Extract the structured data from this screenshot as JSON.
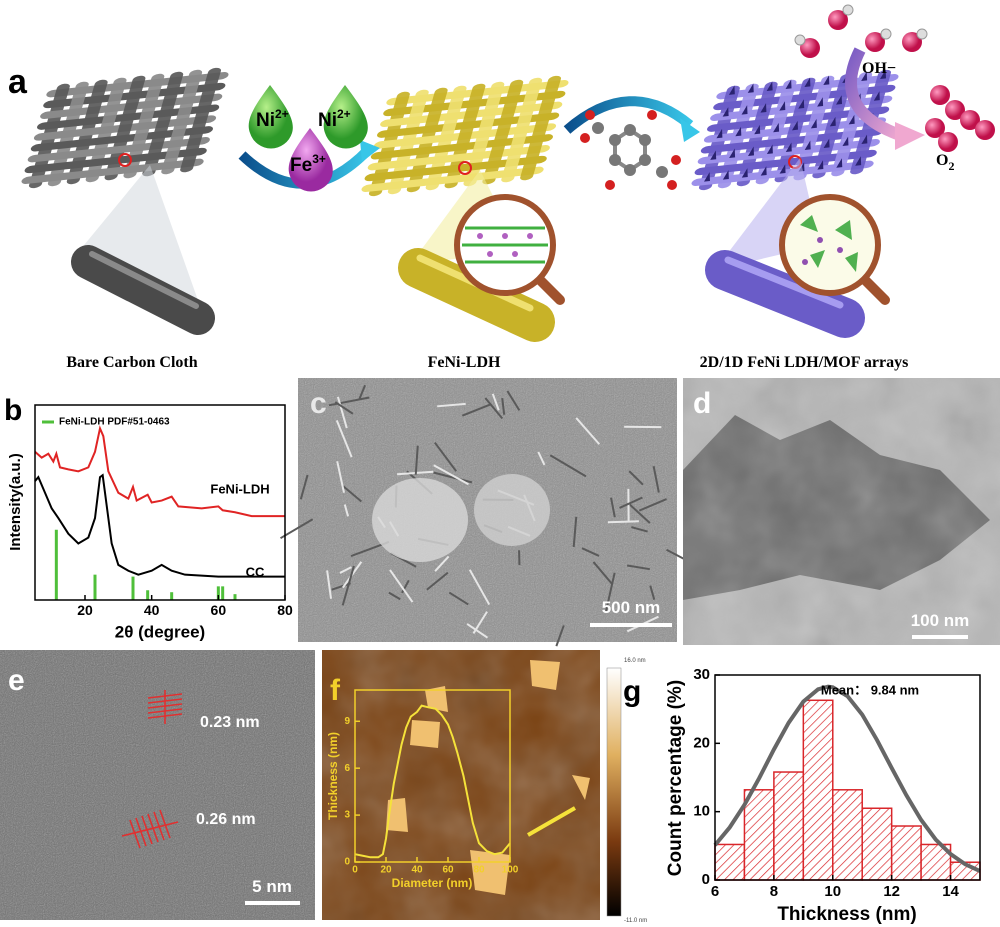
{
  "panel_a": {
    "label": "a",
    "ions": [
      {
        "base": "Ni",
        "sup": "2+"
      },
      {
        "base": "Ni",
        "sup": "2+"
      },
      {
        "base": "Fe",
        "sup": "3+"
      }
    ],
    "hydroxide": "OH−",
    "oxygen": {
      "base": "O",
      "sub": "2"
    },
    "captions": [
      "Bare Carbon Cloth",
      "FeNi-LDH",
      "2D/1D FeNi LDH/MOF arrays"
    ]
  },
  "images": {
    "c": {
      "label": "c",
      "scale_bar": "500 nm"
    },
    "d": {
      "label": "d",
      "scale_bar": "100 nm"
    },
    "e": {
      "label": "e",
      "scale_bar": "5 nm",
      "spacings": [
        "0.23 nm",
        "0.26 nm"
      ]
    },
    "f": {
      "label": "f",
      "colorbar": [
        "16.0 nm",
        "-11.0 nm"
      ]
    }
  },
  "chart_data": [
    {
      "type": "line",
      "label": "b",
      "x_label": "2θ (degree)",
      "y_label": "Intensity(a.u.)",
      "xlim": [
        5,
        80
      ],
      "xticks": [
        20,
        40,
        60,
        80
      ],
      "ylim": [
        0,
        100
      ],
      "legend": "upper right",
      "series": [
        {
          "name": "FeNi-LDH",
          "color": "#e02424",
          "x": [
            5,
            7,
            9,
            10.5,
            11.4,
            12.5,
            15,
            18,
            21,
            23,
            24.5,
            25.5,
            27,
            30,
            33,
            34.4,
            35.5,
            38.8,
            40,
            43,
            46,
            48,
            55,
            60,
            61.3,
            65,
            70,
            80
          ],
          "values": [
            76,
            73,
            75,
            71,
            75,
            68,
            67,
            66,
            68,
            76,
            88,
            84,
            66,
            55,
            52,
            58,
            51,
            54,
            50,
            51,
            53,
            48,
            47,
            48,
            46,
            45,
            43,
            43
          ]
        },
        {
          "name": "CC",
          "color": "#000000",
          "x": [
            5,
            6,
            8,
            10,
            12,
            15,
            18,
            21,
            23,
            24.5,
            25.3,
            26,
            28,
            30,
            33,
            36,
            40,
            43,
            46,
            50,
            60,
            70,
            80
          ],
          "values": [
            61,
            63,
            55,
            47,
            42,
            34,
            29,
            32,
            42,
            63,
            64,
            55,
            29,
            18,
            15,
            13,
            15,
            18,
            15,
            13,
            12,
            12,
            12
          ]
        },
        {
          "name": "FeNi-LDH PDF#51-0463",
          "color": "#4fbf3a",
          "style": "stick",
          "x": [
            11.4,
            23,
            34.4,
            38.8,
            46,
            60,
            61.3,
            65
          ],
          "values": [
            36,
            13,
            12,
            5,
            4,
            7,
            7,
            3
          ]
        }
      ]
    },
    {
      "type": "line",
      "x_label": "Diameter (nm)",
      "y_label": "Thickness (nm)",
      "xlim": [
        0,
        100
      ],
      "xticks": [
        0,
        20,
        40,
        60,
        80,
        100
      ],
      "ylim": [
        0,
        11
      ],
      "yticks": [
        0,
        3,
        6,
        9
      ],
      "series": [
        {
          "color": "#f5e23a",
          "x": [
            0,
            5,
            10,
            15,
            18,
            20,
            22,
            25,
            28,
            30,
            33,
            36,
            40,
            43,
            47,
            52,
            56,
            60,
            63,
            66,
            70,
            73,
            76,
            80,
            85,
            90,
            95,
            100
          ],
          "values": [
            0.5,
            0.4,
            0.3,
            0.3,
            0.5,
            1.5,
            3,
            5,
            6.5,
            7.5,
            8.6,
            9.3,
            9.6,
            10,
            9.9,
            9.8,
            9.4,
            8.8,
            8,
            7,
            5.5,
            4,
            2.5,
            1.2,
            0.7,
            0.5,
            0.6,
            1.2
          ]
        }
      ]
    },
    {
      "type": "histogram",
      "label": "g",
      "x_label": "Thickness (nm)",
      "y_label": "Count percentage (%)",
      "bins": [
        6,
        7,
        8,
        9,
        10,
        11,
        12,
        13,
        14,
        15
      ],
      "values": [
        5.2,
        13.2,
        15.8,
        26.3,
        13.2,
        10.5,
        7.9,
        5.2,
        2.6
      ],
      "color": "#d9262a",
      "xlim": [
        6,
        15
      ],
      "xticks": [
        6,
        8,
        10,
        12,
        14
      ],
      "ylim": [
        0,
        30
      ],
      "yticks": [
        0,
        10,
        20,
        30
      ],
      "annotation": "Mean： 9.84 nm",
      "fit": {
        "color": "#666666",
        "x": [
          6,
          6.5,
          7,
          7.5,
          8,
          8.5,
          9,
          9.5,
          9.84,
          10,
          10.5,
          11,
          11.5,
          12,
          12.5,
          13,
          13.5,
          14,
          14.5,
          15
        ],
        "values": [
          5.1,
          7.7,
          11.0,
          14.9,
          19.1,
          23.0,
          26.1,
          27.9,
          28.3,
          28.2,
          26.9,
          24.2,
          20.5,
          16.4,
          12.4,
          8.8,
          5.9,
          3.8,
          2.3,
          1.3
        ]
      }
    }
  ]
}
